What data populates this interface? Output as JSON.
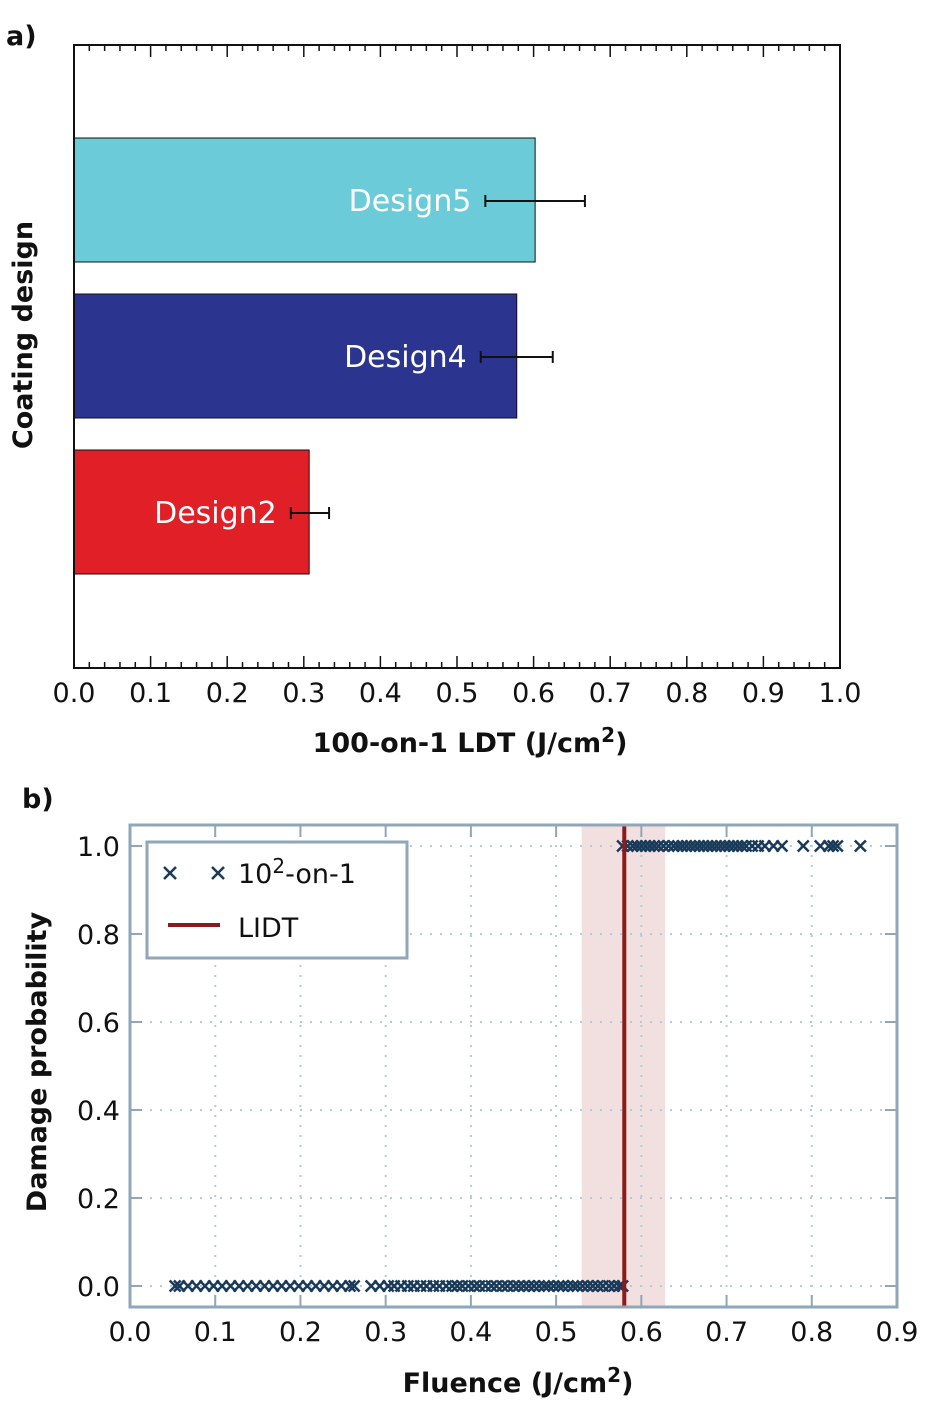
{
  "chart_data": [
    {
      "panel_label": "a)",
      "type": "bar",
      "orientation": "horizontal",
      "categories": [
        "Design5",
        "Design4",
        "Design2"
      ],
      "values": [
        0.602,
        0.578,
        0.307
      ],
      "error_low": [
        0.537,
        0.531,
        0.283
      ],
      "error_high": [
        0.667,
        0.625,
        0.333
      ],
      "colors": [
        "#6ccbd8",
        "#2b3590",
        "#e01f26"
      ],
      "xlabel": "100-on-1 LDT (J/cm",
      "xlabel_sup": "2",
      "xlabel_end": ")",
      "ylabel": "Coating design",
      "xlim": [
        0,
        1.0
      ],
      "xticks": [
        "0.0",
        "0.1",
        "0.2",
        "0.3",
        "0.4",
        "0.5",
        "0.6",
        "0.7",
        "0.8",
        "0.9",
        "1.0"
      ],
      "grid": false
    },
    {
      "panel_label": "b)",
      "type": "scatter",
      "xlabel": "Fluence (J/cm",
      "xlabel_sup": "2",
      "xlabel_end": ")",
      "ylabel": "Damage probability",
      "xlim": [
        0,
        0.9
      ],
      "ylim": [
        -0.05,
        1.05
      ],
      "xticks": [
        "0.0",
        "0.1",
        "0.2",
        "0.3",
        "0.4",
        "0.5",
        "0.6",
        "0.7",
        "0.8",
        "0.9"
      ],
      "yticks": [
        "0.0",
        "0.2",
        "0.4",
        "0.6",
        "0.8",
        "1.0"
      ],
      "grid": true,
      "legend": "top-left",
      "series": [
        {
          "name": "10",
          "name_sup": "2",
          "name_end": "-on-1",
          "color": "#1a3a5a",
          "marker": "x",
          "x_zero": [
            0.053,
            0.058,
            0.068,
            0.078,
            0.088,
            0.098,
            0.108,
            0.118,
            0.128,
            0.138,
            0.148,
            0.158,
            0.168,
            0.178,
            0.188,
            0.198,
            0.208,
            0.218,
            0.228,
            0.238,
            0.248,
            0.258,
            0.263,
            0.283,
            0.293,
            0.303,
            0.31,
            0.318,
            0.326,
            0.333,
            0.341,
            0.348,
            0.356,
            0.363,
            0.371,
            0.378,
            0.384,
            0.39,
            0.397,
            0.404,
            0.41,
            0.417,
            0.424,
            0.43,
            0.437,
            0.443,
            0.45,
            0.456,
            0.462,
            0.468,
            0.474,
            0.48,
            0.486,
            0.491,
            0.497,
            0.503,
            0.508,
            0.514,
            0.52,
            0.525,
            0.531,
            0.537,
            0.543,
            0.549,
            0.555,
            0.562,
            0.568,
            0.574,
            0.578
          ],
          "x_one": [
            0.578,
            0.584,
            0.59,
            0.595,
            0.6,
            0.605,
            0.61,
            0.615,
            0.62,
            0.626,
            0.632,
            0.638,
            0.643,
            0.648,
            0.653,
            0.658,
            0.663,
            0.668,
            0.673,
            0.678,
            0.683,
            0.688,
            0.693,
            0.698,
            0.703,
            0.708,
            0.713,
            0.718,
            0.723,
            0.73,
            0.737,
            0.745,
            0.755,
            0.765,
            0.79,
            0.81,
            0.82,
            0.825,
            0.83,
            0.857
          ]
        },
        {
          "name": "LIDT",
          "type": "vline",
          "x": 0.58,
          "band": [
            0.53,
            0.628
          ],
          "color": "#8b1a1a",
          "band_color": "#f2e0e0"
        }
      ]
    }
  ]
}
